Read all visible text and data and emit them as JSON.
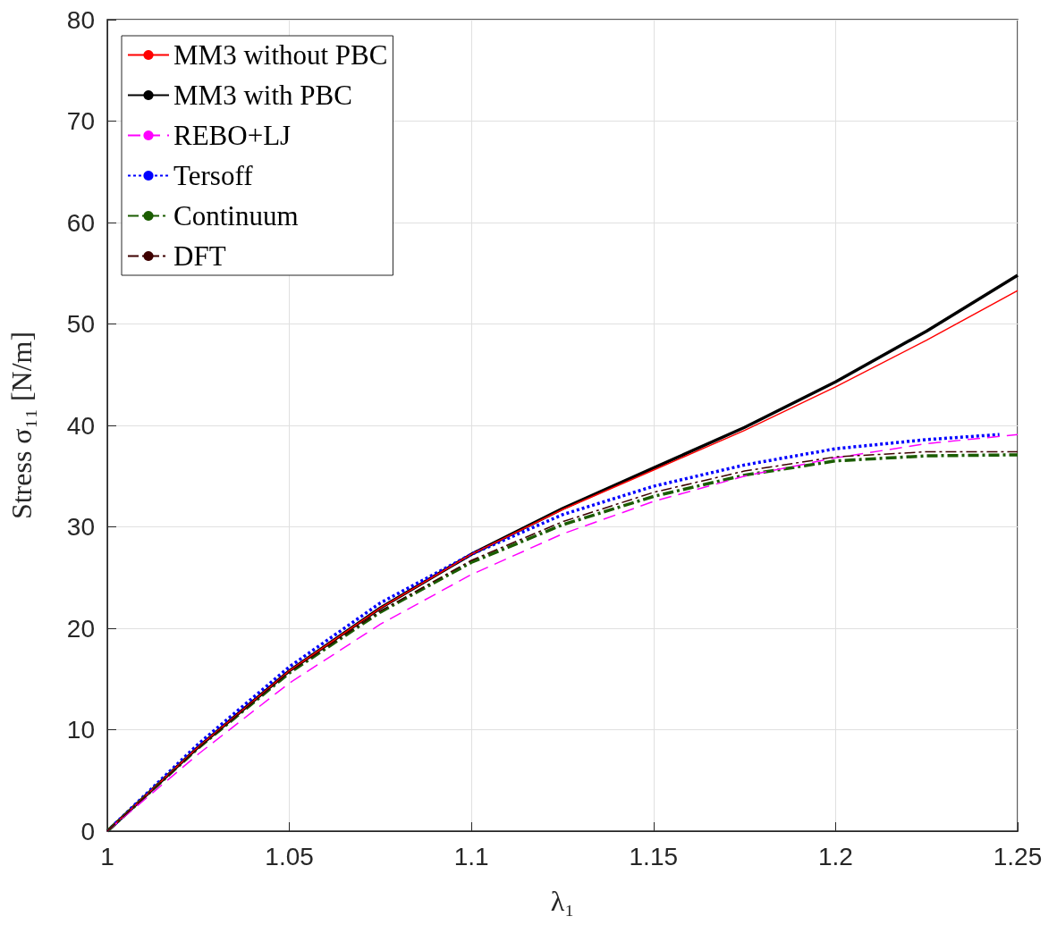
{
  "chart_data": {
    "type": "line",
    "xlabel": "λ₁",
    "ylabel": "Stress σ₁₁ [N/m]",
    "x": [
      1,
      1.025,
      1.05,
      1.075,
      1.1,
      1.125,
      1.15,
      1.175,
      1.2,
      1.225,
      1.25
    ],
    "xlim": [
      1,
      1.25
    ],
    "xticks": [
      1,
      1.05,
      1.1,
      1.15,
      1.2,
      1.25
    ],
    "ylim": [
      0,
      80
    ],
    "yticks": [
      0,
      10,
      20,
      30,
      40,
      50,
      60,
      70,
      80
    ],
    "grid": true,
    "legend": "top left",
    "marker": "none",
    "series": [
      {
        "name": "MM3 without PBC",
        "color": "#ff0000",
        "line_style": "solid",
        "values": [
          0,
          8.3,
          15.8,
          22.0,
          27.3,
          31.7,
          35.6,
          39.5,
          43.8,
          48.4,
          53.3
        ]
      },
      {
        "name": "MM3 with PBC",
        "color": "#000000",
        "line_style": "solid",
        "values": [
          0,
          8.3,
          15.8,
          22.0,
          27.3,
          31.8,
          35.8,
          39.8,
          44.3,
          49.3,
          54.8
        ]
      },
      {
        "name": "REBO+LJ",
        "color": "#ff00ff",
        "line_style": "dashed",
        "values": [
          0,
          7.6,
          14.6,
          20.4,
          25.3,
          29.3,
          32.5,
          35.0,
          36.8,
          38.2,
          39.1
        ]
      },
      {
        "name": "Tersoff",
        "color": "#0000ff",
        "line_style": "dotted",
        "x": [
          1,
          1.025,
          1.05,
          1.075,
          1.1,
          1.125,
          1.15,
          1.175,
          1.2,
          1.225,
          1.245
        ],
        "values": [
          0,
          8.6,
          16.2,
          22.5,
          27.3,
          31.2,
          34.0,
          36.1,
          37.7,
          38.6,
          39.1
        ]
      },
      {
        "name": "Continuum",
        "color": "#1a5c00",
        "line_style": "dashdot",
        "values": [
          0,
          8.2,
          15.6,
          21.6,
          26.5,
          30.2,
          33.0,
          35.1,
          36.5,
          37.0,
          37.1
        ]
      },
      {
        "name": "DFT",
        "color": "#3d0000",
        "line_style": "dashdot",
        "values": [
          0,
          8.2,
          15.7,
          21.7,
          26.7,
          30.5,
          33.4,
          35.5,
          36.9,
          37.4,
          37.4
        ]
      }
    ]
  }
}
